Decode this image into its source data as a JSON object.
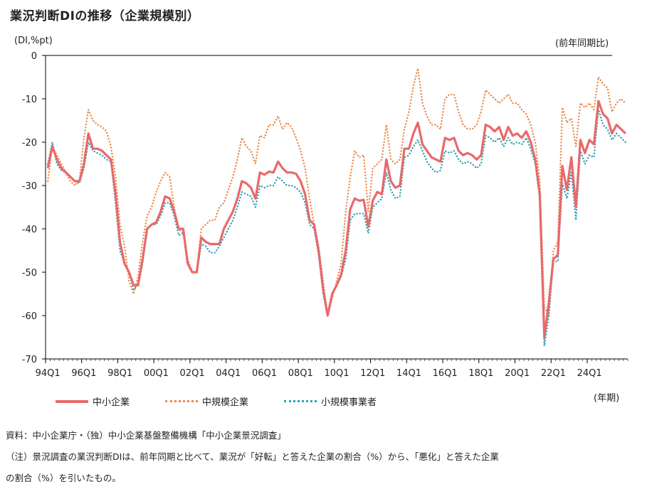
{
  "title": "業況判断DIの推移（企業規模別）",
  "y_unit": "(DI,%pt)",
  "right_unit": "(前年同期比)",
  "x_unit": "(年期)",
  "notes": [
    "資料：中小企業庁・（独）中小企業基盤整備機構「中小企業景況調査」",
    "（注）景況調査の業況判断DIは、前年同期と比べて、業況が「好転」と答えた企業の割合（%）から、「悪化」と答えた企業",
    "の割合（%）を引いたもの。"
  ],
  "chart_data": {
    "type": "line",
    "title": "業況判断DIの推移（企業規模別）",
    "ylabel": "(DI,%pt)",
    "xlabel": "(年期)",
    "ylim": [
      -70,
      0
    ],
    "yticks": [
      0,
      -10,
      -20,
      -30,
      -40,
      -50,
      -60,
      -70
    ],
    "x_range": [
      "1994Q1",
      "2024Q4"
    ],
    "xtick_labels": [
      "94Q1",
      "96Q1",
      "98Q1",
      "00Q1",
      "02Q1",
      "04Q1",
      "06Q1",
      "08Q1",
      "10Q1",
      "12Q1",
      "14Q1",
      "16Q1",
      "18Q1",
      "20Q1",
      "22Q1",
      "24Q1"
    ],
    "legend_position": "bottom",
    "grid": false,
    "series": [
      {
        "name": "中小企業",
        "color": "#e8696b",
        "style": "solid",
        "values": [
          -26,
          -21,
          -24,
          -26,
          -27,
          -28,
          -29,
          -29,
          -25,
          -18,
          -21.5,
          -21.5,
          -22,
          -23,
          -24,
          -32,
          -43,
          -48,
          -50,
          -53,
          -53,
          -47,
          -40,
          -39,
          -38.5,
          -36,
          -32.5,
          -33,
          -36,
          -40,
          -40,
          -48,
          -50,
          -50,
          -42,
          -43,
          -43.5,
          -43.5,
          -43.5,
          -40,
          -38,
          -36,
          -33,
          -29,
          -29.5,
          -30.5,
          -33,
          -27,
          -27.5,
          -26.8,
          -27,
          -24.5,
          -26,
          -27,
          -27,
          -27.3,
          -29,
          -32,
          -38,
          -39,
          -45,
          -54,
          -60,
          -55,
          -53,
          -50.5,
          -45,
          -35.5,
          -33,
          -33.5,
          -33.3,
          -39.5,
          -33.5,
          -31.5,
          -32,
          -24,
          -29,
          -30.5,
          -30,
          -21.5,
          -21.5,
          -18,
          -15.5,
          -20.5,
          -22,
          -23.5,
          -24,
          -24.5,
          -19,
          -19.5,
          -19,
          -22,
          -23,
          -22.5,
          -23,
          -24,
          -23,
          -16,
          -16.5,
          -17.5,
          -16.5,
          -19.5,
          -16.5,
          -18.5,
          -18,
          -19,
          -17.5,
          -20,
          -24,
          -32,
          -65,
          -57,
          -47,
          -46,
          -25.5,
          -31,
          -23.5,
          -35,
          -19.5,
          -22.5,
          -19.5,
          -20.5,
          -10.5,
          -13.5,
          -14.5,
          -18,
          -16,
          -17,
          -18
        ]
      },
      {
        "name": "中規模企業",
        "color": "#ea8a49",
        "style": "dot",
        "values": [
          -29,
          -21,
          -23,
          -25,
          -27,
          -29,
          -30,
          -29,
          -19,
          -12.5,
          -15,
          -16,
          -16.5,
          -17.5,
          -21,
          -28,
          -39,
          -44,
          -52,
          -55,
          -51,
          -43,
          -37,
          -35,
          -31.5,
          -29,
          -27,
          -28,
          -35,
          -40,
          -41,
          -47,
          -50,
          -50,
          -40,
          -39,
          -38,
          -38,
          -35,
          -34,
          -31,
          -28,
          -24,
          -19,
          -21,
          -22,
          -25,
          -18.5,
          -19,
          -16,
          -16,
          -14,
          -17,
          -15.5,
          -16.5,
          -19,
          -22,
          -26,
          -33,
          -39,
          -44,
          -52,
          -60,
          -56,
          -52,
          -48,
          -36,
          -28,
          -22,
          -23.5,
          -23,
          -36,
          -26,
          -25,
          -24,
          -16,
          -24,
          -25,
          -24,
          -17,
          -13,
          -7,
          -3,
          -11,
          -14,
          -16,
          -16,
          -17,
          -10,
          -9,
          -9,
          -13,
          -16,
          -17,
          -17,
          -16,
          -13,
          -8,
          -9,
          -10,
          -11,
          -10,
          -9,
          -11,
          -11,
          -12.5,
          -13.5,
          -16,
          -20,
          -29,
          -58,
          -60,
          -45,
          -43,
          -12,
          -15.5,
          -14.5,
          -21,
          -11,
          -12,
          -11,
          -12.5,
          -5,
          -6.5,
          -7.5,
          -13,
          -11,
          -10,
          -11
        ]
      },
      {
        "name": "小規模事業者",
        "color": "#2fa0b5",
        "style": "dot",
        "values": [
          -25,
          -20,
          -25,
          -26.5,
          -27,
          -28,
          -29,
          -29.5,
          -26,
          -20,
          -22,
          -22.5,
          -23,
          -24,
          -24.5,
          -34,
          -45,
          -48,
          -50,
          -54,
          -53,
          -48,
          -40,
          -39,
          -39,
          -37,
          -34,
          -34,
          -37,
          -41.5,
          -41,
          -48,
          -50,
          -50,
          -43.5,
          -44,
          -45.5,
          -45.5,
          -44,
          -42,
          -40,
          -38,
          -35,
          -31.5,
          -32,
          -32.5,
          -35,
          -30,
          -30.5,
          -30,
          -30,
          -28,
          -29,
          -30,
          -30,
          -30.5,
          -31.5,
          -34,
          -39,
          -40,
          -46,
          -55,
          -60,
          -55,
          -53,
          -51,
          -47,
          -38,
          -36.5,
          -36.5,
          -36.5,
          -41,
          -35,
          -34,
          -33,
          -27,
          -31,
          -33,
          -32.5,
          -23.5,
          -23,
          -21,
          -19.5,
          -22,
          -24.5,
          -26,
          -27,
          -26.5,
          -22,
          -22.5,
          -22,
          -24,
          -25,
          -24.5,
          -25,
          -26,
          -25,
          -18.5,
          -19,
          -20,
          -19,
          -21,
          -19,
          -20.5,
          -20,
          -20.5,
          -19,
          -21.5,
          -25,
          -33,
          -67,
          -60,
          -47.5,
          -47.5,
          -29.5,
          -33,
          -27,
          -38,
          -22,
          -25,
          -23,
          -23.5,
          -12.5,
          -16,
          -17,
          -19.5,
          -18,
          -19,
          -20
        ]
      }
    ]
  }
}
